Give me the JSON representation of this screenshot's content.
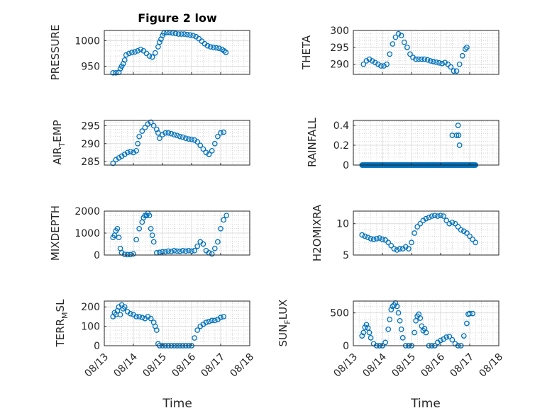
{
  "colors": {
    "marker": "#0072BD",
    "axis": "#262626",
    "grid": "#dcdcdc",
    "background": "#ffffff"
  },
  "chart_data": [
    {
      "type": "scatter",
      "title": "Figure 2 low",
      "ylabel": "PRESSURE",
      "xlabel": "",
      "xlim": [
        0,
        5
      ],
      "ylim": [
        934,
        1020
      ],
      "yticks": [
        950,
        1000
      ],
      "xtick_labels_shown": false,
      "grid": true,
      "marker": "open-circle",
      "points": [
        [
          0.3,
          937
        ],
        [
          0.4,
          937
        ],
        [
          0.5,
          938
        ],
        [
          0.55,
          945
        ],
        [
          0.6,
          950
        ],
        [
          0.65,
          955
        ],
        [
          0.7,
          962
        ],
        [
          0.75,
          972
        ],
        [
          0.85,
          975
        ],
        [
          0.95,
          977
        ],
        [
          1.05,
          978
        ],
        [
          1.15,
          980
        ],
        [
          1.25,
          983
        ],
        [
          1.35,
          980
        ],
        [
          1.45,
          975
        ],
        [
          1.55,
          970
        ],
        [
          1.65,
          968
        ],
        [
          1.75,
          976
        ],
        [
          1.85,
          988
        ],
        [
          1.9,
          997
        ],
        [
          1.95,
          1003
        ],
        [
          2.0,
          1010
        ],
        [
          2.05,
          1015
        ],
        [
          2.15,
          1016
        ],
        [
          2.25,
          1016
        ],
        [
          2.35,
          1015
        ],
        [
          2.45,
          1014
        ],
        [
          2.55,
          1013
        ],
        [
          2.65,
          1013
        ],
        [
          2.75,
          1013
        ],
        [
          2.85,
          1012
        ],
        [
          2.95,
          1011
        ],
        [
          3.05,
          1010
        ],
        [
          3.15,
          1008
        ],
        [
          3.25,
          1004
        ],
        [
          3.35,
          999
        ],
        [
          3.45,
          994
        ],
        [
          3.55,
          990
        ],
        [
          3.65,
          988
        ],
        [
          3.75,
          987
        ],
        [
          3.85,
          986
        ],
        [
          3.95,
          985
        ],
        [
          4.05,
          983
        ],
        [
          4.12,
          980
        ],
        [
          4.18,
          977
        ]
      ]
    },
    {
      "type": "scatter",
      "ylabel": "THETA",
      "xlabel": "",
      "xlim": [
        0,
        5
      ],
      "ylim": [
        287,
        300
      ],
      "yticks": [
        290,
        295,
        300
      ],
      "xtick_labels_shown": false,
      "grid": true,
      "marker": "open-circle",
      "points": [
        [
          0.35,
          290
        ],
        [
          0.45,
          291
        ],
        [
          0.55,
          291.5
        ],
        [
          0.65,
          291
        ],
        [
          0.75,
          290.5
        ],
        [
          0.85,
          290
        ],
        [
          0.95,
          289.5
        ],
        [
          1.05,
          289.5
        ],
        [
          1.15,
          290
        ],
        [
          1.25,
          293
        ],
        [
          1.35,
          296
        ],
        [
          1.45,
          298
        ],
        [
          1.55,
          299
        ],
        [
          1.65,
          298.5
        ],
        [
          1.75,
          296.5
        ],
        [
          1.85,
          295
        ],
        [
          1.95,
          293
        ],
        [
          2.05,
          292
        ],
        [
          2.15,
          291.5
        ],
        [
          2.25,
          291.5
        ],
        [
          2.35,
          291.5
        ],
        [
          2.45,
          291.5
        ],
        [
          2.55,
          291.3
        ],
        [
          2.65,
          291
        ],
        [
          2.75,
          290.8
        ],
        [
          2.85,
          290.6
        ],
        [
          2.95,
          290.4
        ],
        [
          3.05,
          290.2
        ],
        [
          3.15,
          290.5
        ],
        [
          3.25,
          290
        ],
        [
          3.35,
          289.2
        ],
        [
          3.45,
          288
        ],
        [
          3.55,
          288
        ],
        [
          3.65,
          290
        ],
        [
          3.75,
          292.5
        ],
        [
          3.85,
          294.5
        ],
        [
          3.9,
          295
        ]
      ]
    },
    {
      "type": "scatter",
      "ylabel": "AIR_TEMP",
      "ylabel_rendered": {
        "main": "AIR",
        "subscript": "T",
        "rest": "EMP"
      },
      "xlabel": "",
      "xlim": [
        0,
        5
      ],
      "ylim": [
        284,
        296.5
      ],
      "yticks": [
        285,
        290,
        295
      ],
      "xtick_labels_shown": false,
      "grid": true,
      "marker": "open-circle",
      "points": [
        [
          0.3,
          284.5
        ],
        [
          0.4,
          285.5
        ],
        [
          0.5,
          286
        ],
        [
          0.6,
          286.5
        ],
        [
          0.7,
          287
        ],
        [
          0.8,
          287.5
        ],
        [
          0.9,
          287.8
        ],
        [
          1.0,
          287.5
        ],
        [
          1.1,
          288
        ],
        [
          1.15,
          290
        ],
        [
          1.2,
          292
        ],
        [
          1.3,
          293.5
        ],
        [
          1.4,
          294.5
        ],
        [
          1.5,
          295.5
        ],
        [
          1.6,
          296
        ],
        [
          1.7,
          295
        ],
        [
          1.8,
          294
        ],
        [
          1.85,
          293
        ],
        [
          1.9,
          291.5
        ],
        [
          2.0,
          292.5
        ],
        [
          2.1,
          293
        ],
        [
          2.2,
          293
        ],
        [
          2.3,
          292.8
        ],
        [
          2.4,
          292.5
        ],
        [
          2.5,
          292.3
        ],
        [
          2.6,
          292
        ],
        [
          2.7,
          291.8
        ],
        [
          2.8,
          291.5
        ],
        [
          2.9,
          291.3
        ],
        [
          3.0,
          291.2
        ],
        [
          3.1,
          291
        ],
        [
          3.2,
          290.5
        ],
        [
          3.3,
          289.5
        ],
        [
          3.4,
          288.5
        ],
        [
          3.5,
          287.5
        ],
        [
          3.6,
          287
        ],
        [
          3.7,
          288
        ],
        [
          3.8,
          290
        ],
        [
          3.9,
          292
        ],
        [
          4.0,
          293
        ],
        [
          4.1,
          293.2
        ]
      ]
    },
    {
      "type": "scatter",
      "ylabel": "RAINFALL",
      "xlabel": "",
      "xlim": [
        0,
        5
      ],
      "ylim": [
        0,
        0.45
      ],
      "yticks": [
        0,
        0.2,
        0.4
      ],
      "xtick_labels_shown": false,
      "grid": true,
      "marker": "open-circle",
      "baseline": {
        "value": 0,
        "x_from": 0.3,
        "x_to": 4.2
      },
      "points": [
        [
          3.4,
          0.3
        ],
        [
          3.55,
          0.3
        ],
        [
          3.6,
          0.4
        ],
        [
          3.62,
          0.3
        ],
        [
          3.65,
          0.2
        ]
      ]
    },
    {
      "type": "scatter",
      "ylabel": "MIXDEPTH",
      "xlabel": "",
      "xlim": [
        0,
        5
      ],
      "ylim": [
        0,
        2000
      ],
      "yticks": [
        0,
        1000,
        2000
      ],
      "xtick_labels_shown": false,
      "grid": true,
      "marker": "open-circle",
      "points": [
        [
          0.3,
          800
        ],
        [
          0.35,
          900
        ],
        [
          0.4,
          1100
        ],
        [
          0.45,
          1200
        ],
        [
          0.5,
          800
        ],
        [
          0.55,
          300
        ],
        [
          0.6,
          100
        ],
        [
          0.7,
          30
        ],
        [
          0.8,
          20
        ],
        [
          0.9,
          20
        ],
        [
          1.0,
          50
        ],
        [
          1.1,
          700
        ],
        [
          1.2,
          1200
        ],
        [
          1.3,
          1500
        ],
        [
          1.35,
          1700
        ],
        [
          1.4,
          1800
        ],
        [
          1.45,
          1800
        ],
        [
          1.5,
          1900
        ],
        [
          1.55,
          1800
        ],
        [
          1.6,
          1200
        ],
        [
          1.65,
          900
        ],
        [
          1.7,
          600
        ],
        [
          1.8,
          100
        ],
        [
          1.9,
          120
        ],
        [
          2.0,
          150
        ],
        [
          2.1,
          150
        ],
        [
          2.2,
          180
        ],
        [
          2.3,
          160
        ],
        [
          2.4,
          200
        ],
        [
          2.5,
          180
        ],
        [
          2.6,
          170
        ],
        [
          2.7,
          200
        ],
        [
          2.8,
          180
        ],
        [
          2.9,
          200
        ],
        [
          3.0,
          180
        ],
        [
          3.1,
          200
        ],
        [
          3.2,
          400
        ],
        [
          3.3,
          600
        ],
        [
          3.4,
          500
        ],
        [
          3.5,
          200
        ],
        [
          3.6,
          100
        ],
        [
          3.7,
          50
        ],
        [
          3.8,
          300
        ],
        [
          3.9,
          600
        ],
        [
          4.0,
          1200
        ],
        [
          4.1,
          1600
        ],
        [
          4.2,
          1800
        ]
      ]
    },
    {
      "type": "scatter",
      "ylabel": "H2OMIXRA",
      "xlabel": "",
      "xlim": [
        0,
        5
      ],
      "ylim": [
        5,
        12
      ],
      "yticks": [
        5,
        10
      ],
      "xtick_labels_shown": false,
      "grid": true,
      "marker": "open-circle",
      "points": [
        [
          0.3,
          8.2
        ],
        [
          0.4,
          8
        ],
        [
          0.5,
          7.8
        ],
        [
          0.6,
          7.6
        ],
        [
          0.7,
          7.5
        ],
        [
          0.8,
          7.6
        ],
        [
          0.9,
          7.7
        ],
        [
          1.0,
          7.5
        ],
        [
          1.1,
          7.4
        ],
        [
          1.2,
          7
        ],
        [
          1.3,
          6.5
        ],
        [
          1.4,
          6
        ],
        [
          1.5,
          5.8
        ],
        [
          1.6,
          6
        ],
        [
          1.7,
          6
        ],
        [
          1.8,
          6.3
        ],
        [
          1.9,
          6
        ],
        [
          2.0,
          7
        ],
        [
          2.1,
          8.5
        ],
        [
          2.2,
          9.5
        ],
        [
          2.3,
          10
        ],
        [
          2.4,
          10.5
        ],
        [
          2.5,
          10.8
        ],
        [
          2.6,
          11
        ],
        [
          2.7,
          11.2
        ],
        [
          2.8,
          11.3
        ],
        [
          2.9,
          11.2
        ],
        [
          3.0,
          11.3
        ],
        [
          3.1,
          11.2
        ],
        [
          3.2,
          10.5
        ],
        [
          3.3,
          10
        ],
        [
          3.4,
          10.2
        ],
        [
          3.5,
          10
        ],
        [
          3.6,
          9.5
        ],
        [
          3.7,
          9
        ],
        [
          3.8,
          8.8
        ],
        [
          3.9,
          8.5
        ],
        [
          4.0,
          8
        ],
        [
          4.1,
          7.5
        ],
        [
          4.2,
          7
        ]
      ]
    },
    {
      "type": "scatter",
      "ylabel": "TERR_MSL",
      "ylabel_rendered": {
        "main": "TERR",
        "subscript": "M",
        "rest": "SL"
      },
      "xlabel": "Time",
      "xlim": [
        0,
        5
      ],
      "ylim": [
        0,
        230
      ],
      "yticks": [
        0,
        100,
        200
      ],
      "xticks": [
        0,
        1,
        2,
        3,
        4,
        5
      ],
      "xtick_labels": [
        "08/13",
        "08/14",
        "08/15",
        "08/16",
        "08/17",
        "08/18"
      ],
      "grid": true,
      "marker": "open-circle",
      "points": [
        [
          0.3,
          150
        ],
        [
          0.35,
          170
        ],
        [
          0.4,
          160
        ],
        [
          0.45,
          180
        ],
        [
          0.5,
          200
        ],
        [
          0.55,
          160
        ],
        [
          0.6,
          210
        ],
        [
          0.65,
          190
        ],
        [
          0.7,
          200
        ],
        [
          0.8,
          175
        ],
        [
          0.9,
          165
        ],
        [
          1.0,
          160
        ],
        [
          1.1,
          150
        ],
        [
          1.2,
          150
        ],
        [
          1.3,
          145
        ],
        [
          1.4,
          140
        ],
        [
          1.5,
          150
        ],
        [
          1.6,
          140
        ],
        [
          1.7,
          120
        ],
        [
          1.75,
          100
        ],
        [
          1.8,
          80
        ],
        [
          1.85,
          10
        ],
        [
          1.9,
          0
        ],
        [
          2.0,
          0
        ],
        [
          2.1,
          0
        ],
        [
          2.2,
          0
        ],
        [
          2.3,
          0
        ],
        [
          2.4,
          0
        ],
        [
          2.5,
          0
        ],
        [
          2.6,
          0
        ],
        [
          2.7,
          0
        ],
        [
          2.8,
          0
        ],
        [
          2.9,
          0
        ],
        [
          3.0,
          0
        ],
        [
          3.1,
          40
        ],
        [
          3.2,
          80
        ],
        [
          3.3,
          100
        ],
        [
          3.4,
          110
        ],
        [
          3.5,
          120
        ],
        [
          3.6,
          125
        ],
        [
          3.7,
          130
        ],
        [
          3.8,
          130
        ],
        [
          3.9,
          135
        ],
        [
          4.0,
          145
        ],
        [
          4.1,
          150
        ]
      ]
    },
    {
      "type": "scatter",
      "ylabel": "SUN_FLUX",
      "ylabel_rendered": {
        "main": "SUN",
        "subscript": "F",
        "rest": "LUX"
      },
      "xlabel": "Time",
      "xlim": [
        0,
        5
      ],
      "ylim": [
        0,
        680
      ],
      "yticks": [
        0,
        500
      ],
      "xticks": [
        0,
        1,
        2,
        3,
        4,
        5
      ],
      "xtick_labels": [
        "08/13",
        "08/14",
        "08/15",
        "08/16",
        "08/17",
        "08/18"
      ],
      "grid": true,
      "marker": "open-circle",
      "points": [
        [
          0.3,
          150
        ],
        [
          0.35,
          200
        ],
        [
          0.4,
          280
        ],
        [
          0.45,
          320
        ],
        [
          0.5,
          270
        ],
        [
          0.55,
          200
        ],
        [
          0.6,
          120
        ],
        [
          0.7,
          30
        ],
        [
          0.8,
          0
        ],
        [
          0.9,
          0
        ],
        [
          1.0,
          0
        ],
        [
          1.1,
          50
        ],
        [
          1.2,
          250
        ],
        [
          1.25,
          400
        ],
        [
          1.3,
          550
        ],
        [
          1.35,
          600
        ],
        [
          1.4,
          620
        ],
        [
          1.45,
          650
        ],
        [
          1.5,
          600
        ],
        [
          1.55,
          500
        ],
        [
          1.6,
          380
        ],
        [
          1.65,
          250
        ],
        [
          1.7,
          120
        ],
        [
          1.8,
          0
        ],
        [
          1.9,
          0
        ],
        [
          2.0,
          0
        ],
        [
          2.1,
          200
        ],
        [
          2.15,
          380
        ],
        [
          2.2,
          450
        ],
        [
          2.25,
          480
        ],
        [
          2.3,
          420
        ],
        [
          2.35,
          300
        ],
        [
          2.4,
          230
        ],
        [
          2.45,
          260
        ],
        [
          2.5,
          200
        ],
        [
          2.6,
          0
        ],
        [
          2.7,
          0
        ],
        [
          2.8,
          0
        ],
        [
          2.9,
          50
        ],
        [
          3.0,
          80
        ],
        [
          3.1,
          100
        ],
        [
          3.2,
          130
        ],
        [
          3.3,
          140
        ],
        [
          3.4,
          90
        ],
        [
          3.5,
          30
        ],
        [
          3.6,
          0
        ],
        [
          3.7,
          0
        ],
        [
          3.8,
          150
        ],
        [
          3.9,
          340
        ],
        [
          3.95,
          480
        ],
        [
          4.0,
          490
        ],
        [
          4.1,
          490
        ]
      ]
    }
  ]
}
